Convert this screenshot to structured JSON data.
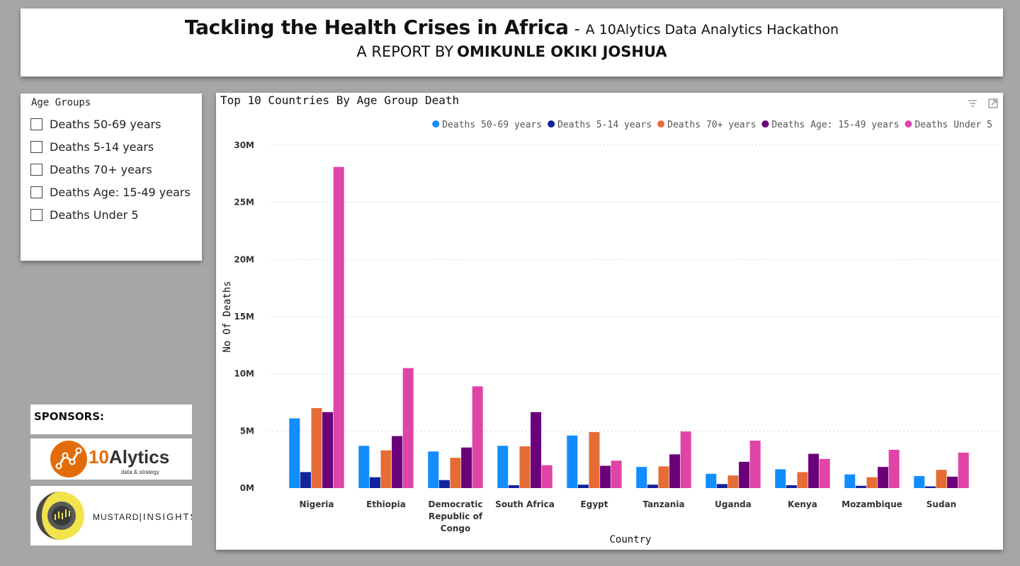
{
  "header": {
    "title": "Tackling the Health Crises in Africa",
    "dash": "-",
    "subtitle": "A 10Alytics Data Analytics Hackathon",
    "report_by": "A REPORT BY",
    "author": "OMIKUNLE OKIKI JOSHUA"
  },
  "slicer": {
    "title": "Age Groups",
    "options": [
      {
        "label": "Deaths 50-69 years",
        "checked": false
      },
      {
        "label": "Deaths 5-14 years",
        "checked": false
      },
      {
        "label": "Deaths 70+ years",
        "checked": false
      },
      {
        "label": "Deaths Age: 15-49 years",
        "checked": false
      },
      {
        "label": "Deaths Under 5",
        "checked": false
      }
    ]
  },
  "sponsors": {
    "label": "SPONSORS:",
    "tenalytics": {
      "name": "10Alytics",
      "tagline": "data & strategy",
      "brand_color": "#e36c0a"
    },
    "mustard": {
      "name_a": "MUSTARD",
      "name_b": "INSIGHTS",
      "brand_color": "#f2e34c"
    }
  },
  "icons": {
    "filter": "filter-icon",
    "focus_mode": "focus-mode-icon"
  },
  "chart_data": {
    "type": "bar",
    "title": "Top 10 Countries By Age Group Death",
    "xlabel": "Country",
    "ylabel": "No Of Deaths",
    "ylim": [
      0,
      30000000
    ],
    "yticks": [
      {
        "value": 0,
        "label": "0M"
      },
      {
        "value": 5000000,
        "label": "5M"
      },
      {
        "value": 10000000,
        "label": "10M"
      },
      {
        "value": 15000000,
        "label": "15M"
      },
      {
        "value": 20000000,
        "label": "20M"
      },
      {
        "value": 25000000,
        "label": "25M"
      },
      {
        "value": 30000000,
        "label": "30M"
      }
    ],
    "grid": true,
    "legend_position": "top-right",
    "categories": [
      "Nigeria",
      "Ethiopia",
      "Democratic Republic of Congo",
      "South Africa",
      "Egypt",
      "Tanzania",
      "Uganda",
      "Kenya",
      "Mozambique",
      "Sudan"
    ],
    "category_labels": [
      [
        "Nigeria"
      ],
      [
        "Ethiopia"
      ],
      [
        "Democratic",
        "Republic of",
        "Congo"
      ],
      [
        "South Africa"
      ],
      [
        "Egypt"
      ],
      [
        "Tanzania"
      ],
      [
        "Uganda"
      ],
      [
        "Kenya"
      ],
      [
        "Mozambique"
      ],
      [
        "Sudan"
      ]
    ],
    "series": [
      {
        "name": "Deaths 50-69 years",
        "color": "#118dff",
        "values": [
          6100000,
          3700000,
          3200000,
          3700000,
          4600000,
          1850000,
          1250000,
          1650000,
          1200000,
          1050000
        ]
      },
      {
        "name": "Deaths 5-14 years",
        "color": "#12239e",
        "values": [
          1400000,
          950000,
          700000,
          250000,
          300000,
          300000,
          350000,
          250000,
          200000,
          150000
        ]
      },
      {
        "name": "Deaths 70+ years",
        "color": "#e66c37",
        "values": [
          7000000,
          3300000,
          2650000,
          3650000,
          4900000,
          1900000,
          1100000,
          1400000,
          950000,
          1600000
        ]
      },
      {
        "name": "Deaths Age: 15-49 years",
        "color": "#6b007b",
        "values": [
          6650000,
          4550000,
          3550000,
          6650000,
          1950000,
          2950000,
          2300000,
          3000000,
          1850000,
          1000000
        ]
      },
      {
        "name": "Deaths Under 5",
        "color": "#e044a7",
        "values": [
          28100000,
          10500000,
          8900000,
          2000000,
          2400000,
          4950000,
          4150000,
          2550000,
          3350000,
          3100000
        ]
      }
    ]
  }
}
